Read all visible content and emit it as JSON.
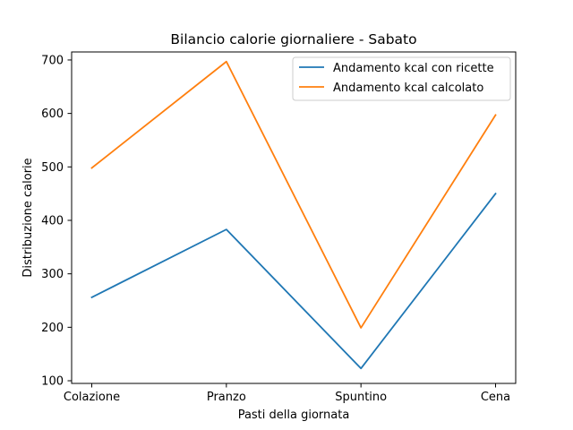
{
  "chart_data": {
    "type": "line",
    "title": "Bilancio calorie giornaliere - Sabato",
    "xlabel": "Pasti della giornata",
    "ylabel": "Distribuzione calorie",
    "categories": [
      "Colazione",
      "Pranzo",
      "Spuntino",
      "Cena"
    ],
    "ylim": [
      95,
      715
    ],
    "yticks": [
      100,
      200,
      300,
      400,
      500,
      600,
      700
    ],
    "grid": false,
    "legend_position": "upper right",
    "series": [
      {
        "name": "Andamento kcal con ricette",
        "color": "#1f77b4",
        "values": [
          256,
          383,
          123,
          450
        ]
      },
      {
        "name": "Andamento kcal calcolato",
        "color": "#ff7f0e",
        "values": [
          498,
          697,
          199,
          597
        ]
      }
    ]
  }
}
